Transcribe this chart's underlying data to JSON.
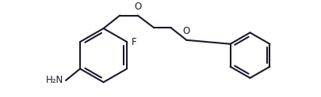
{
  "bg": "#ffffff",
  "lc": "#1a1a2e",
  "lw": 1.5,
  "fs": 8.5,
  "tc": "#1a1a2e",
  "labels": {
    "F": "F",
    "O1": "O",
    "O2": "O",
    "NH2": "H₂N"
  },
  "xlim": [
    -0.5,
    8.2
  ],
  "ylim": [
    0.15,
    2.95
  ]
}
